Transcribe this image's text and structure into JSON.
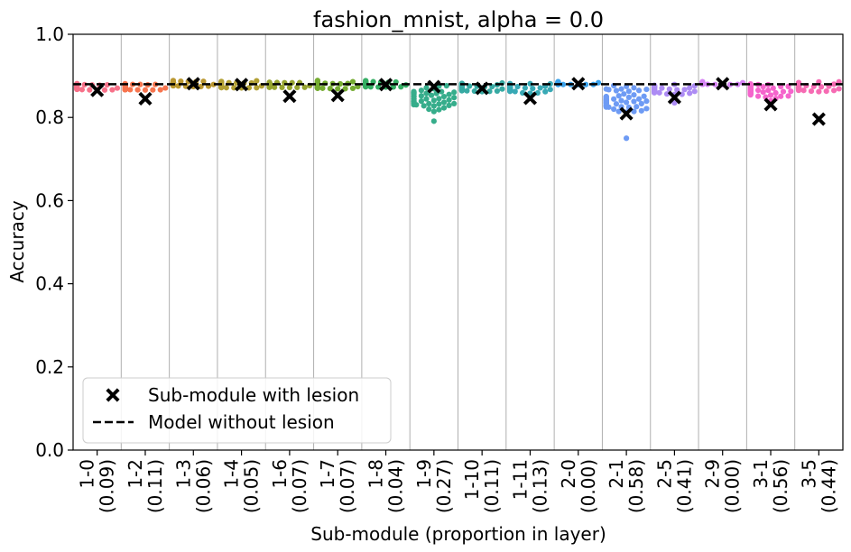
{
  "chart_data": {
    "type": "scatter",
    "title": "fashion_mnist, alpha = 0.0",
    "xlabel": "Sub-module (proportion in layer)",
    "ylabel": "Accuracy",
    "ylim": [
      0.0,
      1.0
    ],
    "yticks": [
      "0.0",
      "0.2",
      "0.4",
      "0.6",
      "0.8",
      "1.0"
    ],
    "grid": "vertical",
    "legend_position": "lower-left",
    "baseline": 0.88,
    "categories": [
      {
        "name": "1-0",
        "proportion": "(0.09)",
        "lesion": 0.865,
        "center": 0.873,
        "spread": 0.006,
        "low": 0.866,
        "color": "#f77189"
      },
      {
        "name": "1-2",
        "proportion": "(0.11)",
        "lesion": 0.845,
        "center": 0.872,
        "spread": 0.005,
        "low": 0.866,
        "color": "#f7754f"
      },
      {
        "name": "1-3",
        "proportion": "(0.06)",
        "lesion": 0.881,
        "center": 0.88,
        "spread": 0.004,
        "low": 0.874,
        "color": "#bb9832"
      },
      {
        "name": "1-4",
        "proportion": "(0.05)",
        "lesion": 0.879,
        "center": 0.878,
        "spread": 0.005,
        "low": 0.871,
        "color": "#b2a034"
      },
      {
        "name": "1-6",
        "proportion": "(0.07)",
        "lesion": 0.851,
        "center": 0.878,
        "spread": 0.005,
        "low": 0.872,
        "color": "#97a431"
      },
      {
        "name": "1-7",
        "proportion": "(0.07)",
        "lesion": 0.853,
        "center": 0.877,
        "spread": 0.006,
        "low": 0.869,
        "color": "#76ac32"
      },
      {
        "name": "1-8",
        "proportion": "(0.04)",
        "lesion": 0.879,
        "center": 0.88,
        "spread": 0.004,
        "low": 0.873,
        "color": "#35ae64"
      },
      {
        "name": "1-9",
        "proportion": "(0.27)",
        "lesion": 0.874,
        "center": 0.848,
        "spread": 0.014,
        "low": 0.791,
        "color": "#36ad8b"
      },
      {
        "name": "1-10",
        "proportion": "(0.11)",
        "lesion": 0.87,
        "center": 0.874,
        "spread": 0.005,
        "low": 0.862,
        "color": "#37aaa3"
      },
      {
        "name": "1-11",
        "proportion": "(0.13)",
        "lesion": 0.846,
        "center": 0.871,
        "spread": 0.005,
        "low": 0.858,
        "color": "#38a9b5"
      },
      {
        "name": "2-0",
        "proportion": "(0.00)",
        "lesion": 0.881,
        "center": 0.882,
        "spread": 0.002,
        "low": 0.879,
        "color": "#3ba3ec"
      },
      {
        "name": "2-1",
        "proportion": "(0.58)",
        "lesion": 0.809,
        "center": 0.842,
        "spread": 0.018,
        "low": 0.75,
        "color": "#6e9bf4"
      },
      {
        "name": "2-5",
        "proportion": "(0.41)",
        "lesion": 0.848,
        "center": 0.866,
        "spread": 0.007,
        "low": 0.835,
        "color": "#ad8cf4"
      },
      {
        "name": "2-9",
        "proportion": "(0.00)",
        "lesion": 0.881,
        "center": 0.882,
        "spread": 0.002,
        "low": 0.879,
        "color": "#d584f4"
      },
      {
        "name": "3-1",
        "proportion": "(0.56)",
        "lesion": 0.831,
        "center": 0.866,
        "spread": 0.008,
        "low": 0.84,
        "color": "#f565cc"
      },
      {
        "name": "3-5",
        "proportion": "(0.44)",
        "lesion": 0.796,
        "center": 0.874,
        "spread": 0.006,
        "low": 0.862,
        "color": "#f66bb3"
      }
    ],
    "legend": [
      {
        "label": "Sub-module with lesion",
        "marker": "x-marker"
      },
      {
        "label": "Model without lesion",
        "marker": "dashed-line"
      }
    ]
  }
}
